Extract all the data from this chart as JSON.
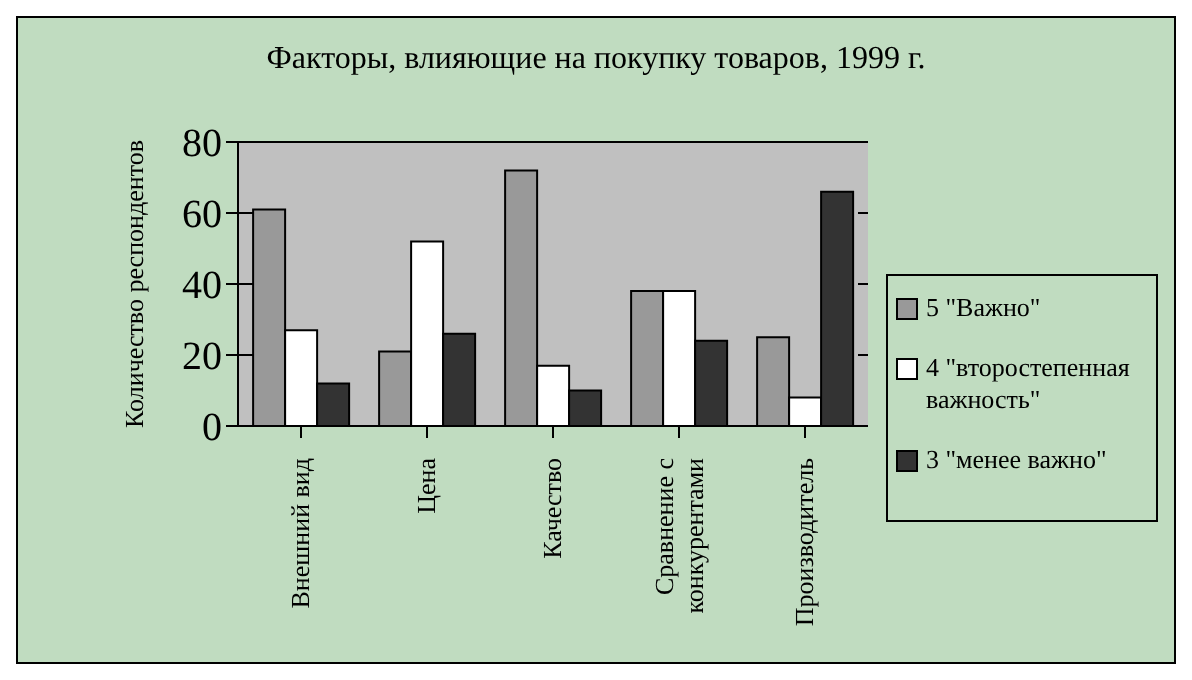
{
  "chart_data": {
    "type": "bar",
    "title": "Факторы, влияющие на покупку товаров, 1999 г.",
    "ylabel": "Количество респондентов",
    "categories": [
      "Внешний вид",
      "Цена",
      "Качество",
      "Сравнение с конкурентами",
      "Производитель"
    ],
    "series": [
      {
        "name": "5 \"Важно\"",
        "color": "#999999",
        "values": [
          61,
          21,
          72,
          38,
          25
        ]
      },
      {
        "name": "4 \"второстепенная важность\"",
        "color": "#ffffff",
        "values": [
          27,
          52,
          17,
          38,
          8
        ]
      },
      {
        "name": "3 \"менее важно\"",
        "color": "#333333",
        "values": [
          12,
          26,
          10,
          24,
          66
        ]
      }
    ],
    "ylim": [
      0,
      80
    ],
    "yticks": [
      0,
      20,
      40,
      60,
      80
    ],
    "grid": "y",
    "legend": "right"
  }
}
